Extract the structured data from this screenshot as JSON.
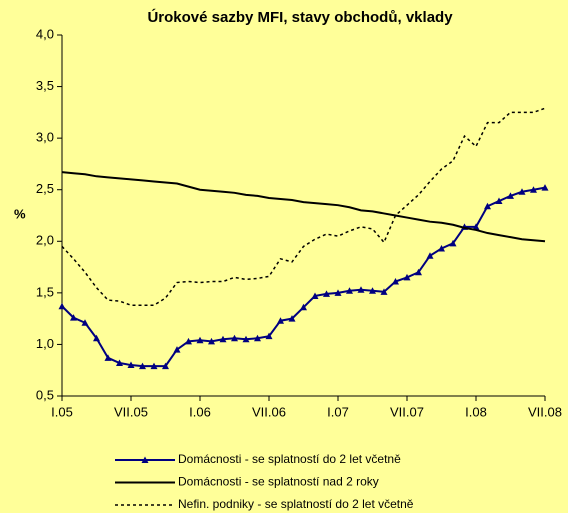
{
  "chart_data": {
    "type": "line",
    "title": "Úrokové sazby MFI, stavy obchodů, vklady",
    "y_label": "%",
    "categories": [
      "I.05",
      null,
      null,
      null,
      null,
      null,
      "VII.05",
      null,
      null,
      null,
      null,
      null,
      "I.06",
      null,
      null,
      null,
      null,
      null,
      "VII.06",
      null,
      null,
      null,
      null,
      null,
      "I.07",
      null,
      null,
      null,
      null,
      null,
      "VII.07",
      null,
      null,
      null,
      null,
      null,
      "I.08",
      null,
      null,
      null,
      null,
      null,
      "VII.08"
    ],
    "ylim": [
      0.5,
      4.0
    ],
    "yticks": [
      {
        "value": 0.5,
        "label": "0,5"
      },
      {
        "value": 1.0,
        "label": "1,0"
      },
      {
        "value": 1.5,
        "label": "1,5"
      },
      {
        "value": 2.0,
        "label": "2,0"
      },
      {
        "value": 2.5,
        "label": "2,5"
      },
      {
        "value": 3.0,
        "label": "3,0"
      },
      {
        "value": 3.5,
        "label": "3,5"
      },
      {
        "value": 4.0,
        "label": "4,0"
      }
    ],
    "background": "#ffff99",
    "series": [
      {
        "name": "Domácnosti - se splatností do 2 let včetně",
        "color": "#000080",
        "style": "solid-triangle",
        "values": [
          1.37,
          1.26,
          1.21,
          1.06,
          0.87,
          0.82,
          0.8,
          0.79,
          0.79,
          0.79,
          0.95,
          1.03,
          1.04,
          1.03,
          1.05,
          1.06,
          1.05,
          1.06,
          1.08,
          1.23,
          1.25,
          1.36,
          1.47,
          1.49,
          1.5,
          1.52,
          1.53,
          1.52,
          1.51,
          1.61,
          1.65,
          1.7,
          1.86,
          1.93,
          1.98,
          2.14,
          2.14,
          2.34,
          2.39,
          2.44,
          2.48,
          2.5,
          2.52
        ]
      },
      {
        "name": "Domácnosti - se splatností nad 2 roky",
        "color": "#000000",
        "style": "solid",
        "values": [
          2.67,
          2.66,
          2.65,
          2.63,
          2.62,
          2.61,
          2.6,
          2.59,
          2.58,
          2.57,
          2.56,
          2.53,
          2.5,
          2.49,
          2.48,
          2.47,
          2.45,
          2.44,
          2.42,
          2.41,
          2.4,
          2.38,
          2.37,
          2.36,
          2.35,
          2.33,
          2.3,
          2.29,
          2.27,
          2.25,
          2.23,
          2.21,
          2.19,
          2.18,
          2.16,
          2.13,
          2.11,
          2.08,
          2.06,
          2.04,
          2.02,
          2.01,
          2.0
        ]
      },
      {
        "name": "Nefin. podniky - se splatností do 2 let včetně",
        "color": "#000000",
        "style": "dotted",
        "values": [
          1.95,
          1.83,
          1.7,
          1.55,
          1.43,
          1.42,
          1.38,
          1.38,
          1.38,
          1.45,
          1.6,
          1.61,
          1.6,
          1.61,
          1.61,
          1.65,
          1.63,
          1.64,
          1.66,
          1.83,
          1.8,
          1.95,
          2.02,
          2.07,
          2.05,
          2.1,
          2.14,
          2.12,
          1.99,
          2.25,
          2.35,
          2.45,
          2.58,
          2.7,
          2.78,
          3.02,
          2.92,
          3.15,
          3.15,
          3.25,
          3.25,
          3.25,
          3.29
        ]
      }
    ]
  }
}
